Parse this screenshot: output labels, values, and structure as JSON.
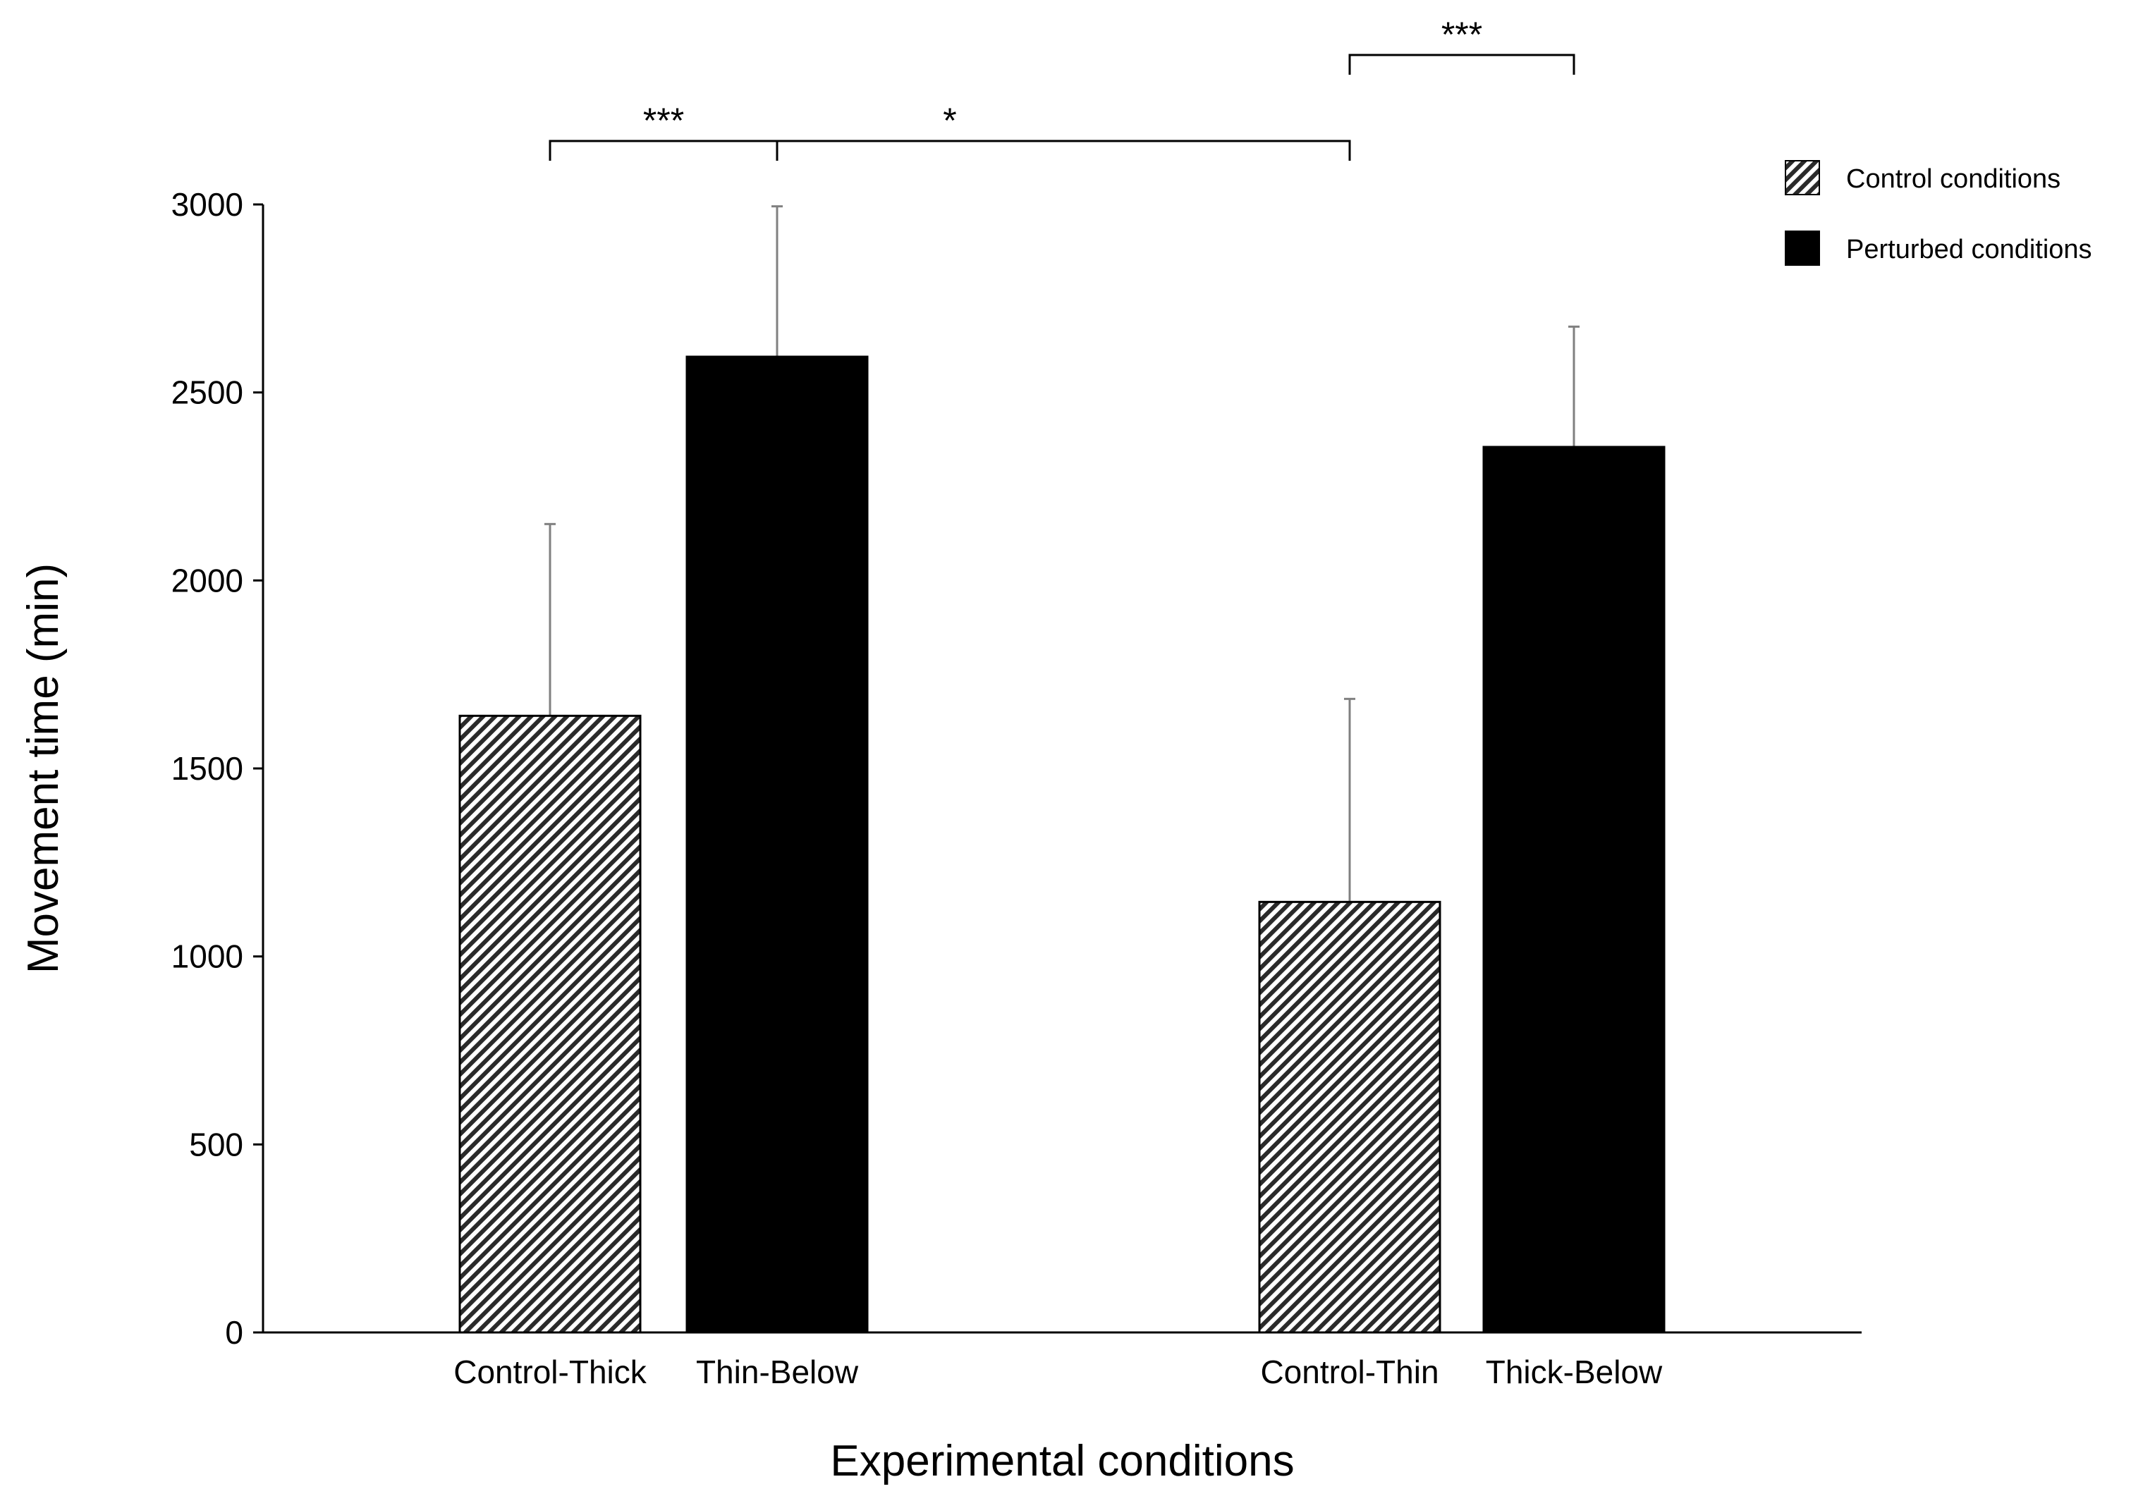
{
  "chart_data": {
    "type": "bar",
    "title": "",
    "xlabel": "Experimental conditions",
    "ylabel": "Movement time (min)",
    "ylim": [
      0,
      3000
    ],
    "yticks": [
      0,
      500,
      1000,
      1500,
      2000,
      2500,
      3000
    ],
    "categories": [
      "Control-Thick",
      "Thin-Below",
      "Control-Thin",
      "Thick-Below"
    ],
    "groups": [
      {
        "label": "Control-Thick / Thin-Below",
        "members": [
          0,
          1
        ]
      },
      {
        "label": "Control-Thin / Thick-Below",
        "members": [
          2,
          3
        ]
      }
    ],
    "bars": [
      {
        "category": "Control-Thick",
        "series": "Control conditions",
        "value": 1640,
        "error": 510
      },
      {
        "category": "Thin-Below",
        "series": "Perturbed conditions",
        "value": 2595,
        "error": 400
      },
      {
        "category": "Control-Thin",
        "series": "Control conditions",
        "value": 1145,
        "error": 540
      },
      {
        "category": "Thick-Below",
        "series": "Perturbed conditions",
        "value": 2355,
        "error": 320
      }
    ],
    "series": [
      {
        "name": "Control conditions",
        "fill": "hatched",
        "color": "#000000"
      },
      {
        "name": "Perturbed conditions",
        "fill": "solid",
        "color": "#000000"
      }
    ],
    "significance": [
      {
        "from": "Control-Thick",
        "to": "Thin-Below",
        "label": "***"
      },
      {
        "from": "Control-Thin",
        "to": "Thick-Below",
        "label": "***"
      },
      {
        "from": "Control-Thick",
        "to": "Control-Thin",
        "label": "*"
      }
    ],
    "legend": {
      "position": "top-right"
    },
    "grid": false
  }
}
